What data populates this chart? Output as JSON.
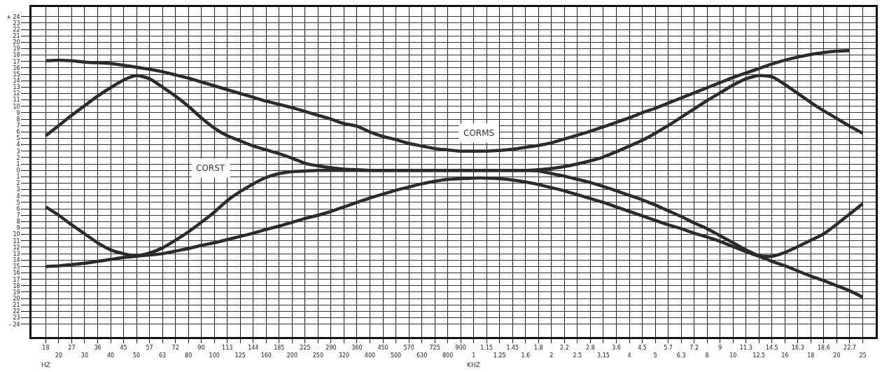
{
  "chart_data": {
    "type": "line",
    "categories": [
      "18",
      "20",
      "27",
      "30",
      "36",
      "40",
      "45",
      "50",
      "57",
      "63",
      "72",
      "80",
      "90",
      "100",
      "113",
      "125",
      "144",
      "160",
      "185",
      "200",
      "225",
      "250",
      "290",
      "320",
      "360",
      "400",
      "450",
      "500",
      "570",
      "630",
      "725",
      "800",
      "900",
      "1",
      "1.15",
      "1.25",
      "1.45",
      "1.6",
      "1.8",
      "2",
      "2.2",
      "2.5",
      "2.8",
      "3.15",
      "3.6",
      "4",
      "4.5",
      "5",
      "5.7",
      "6.3",
      "7.2",
      "8",
      "9",
      "10",
      "11.3",
      "12.5",
      "14.5",
      "16",
      "16.3",
      "18",
      "18.6",
      "20",
      "22.7",
      "25"
    ],
    "series": [
      {
        "color": "#2b2b2b",
        "values": [
          17.1,
          17.2,
          17.1,
          16.9,
          16.8,
          16.7,
          16.4,
          16.1,
          15.8,
          15.4,
          14.9,
          14.4,
          13.8,
          13.2,
          12.6,
          12.0,
          11.4,
          10.8,
          10.3,
          9.8,
          9.2,
          8.6,
          8.0,
          7.3,
          6.9,
          6.0,
          5.3,
          4.8,
          4.2,
          3.8,
          3.4,
          3.2,
          3.0,
          3.0,
          3.0,
          3.1,
          3.3,
          3.6,
          3.9,
          4.3,
          4.9,
          5.5,
          6.1,
          6.8,
          7.5,
          8.2,
          9.0,
          9.7,
          10.5,
          11.3,
          12.1,
          12.9,
          13.7,
          14.5,
          15.2,
          15.9,
          16.6,
          17.2,
          17.7,
          18.1,
          18.4,
          18.6,
          18.7,
          null
        ]
      },
      {
        "color": "#2b2b2b",
        "values": [
          -15.0,
          -14.9,
          -14.7,
          -14.5,
          -14.2,
          -13.9,
          -13.6,
          -13.4,
          -13.2,
          -13.0,
          -12.6,
          -12.2,
          -11.7,
          -11.3,
          -10.8,
          -10.3,
          -9.8,
          -9.2,
          -8.7,
          -8.1,
          -7.5,
          -7.0,
          -6.4,
          -5.7,
          -5.0,
          -4.3,
          -3.7,
          -3.1,
          -2.6,
          -2.1,
          -1.7,
          -1.4,
          -1.3,
          -1.2,
          -1.2,
          -1.3,
          -1.5,
          -1.8,
          -2.2,
          -2.7,
          -3.2,
          -3.8,
          -4.4,
          -5.0,
          -5.7,
          -6.4,
          -7.1,
          -7.8,
          -8.5,
          -9.1,
          -9.8,
          -10.4,
          -11.1,
          -11.9,
          -12.7,
          -13.4,
          -14.2,
          -14.9,
          -15.7,
          -16.5,
          -17.2,
          -18.0,
          -18.8,
          -19.8
        ]
      },
      {
        "color": "#2b2b2b",
        "values": [
          5.4,
          7.0,
          8.6,
          10.1,
          11.6,
          12.9,
          14.1,
          14.8,
          14.3,
          13.0,
          11.6,
          10.0,
          8.2,
          6.6,
          5.4,
          4.6,
          3.8,
          3.2,
          2.6,
          1.9,
          1.1,
          0.7,
          0.4,
          0.2,
          0.1,
          0,
          0,
          0,
          0,
          0,
          0,
          0,
          0,
          0,
          0,
          0,
          0,
          0,
          0.1,
          0.3,
          0.6,
          1.0,
          1.5,
          2.1,
          2.9,
          3.8,
          4.7,
          5.8,
          7.0,
          8.3,
          9.6,
          10.9,
          12.1,
          13.3,
          14.3,
          14.8,
          14.6,
          13.4,
          12.0,
          10.6,
          9.3,
          8.1,
          6.9,
          5.8
        ]
      },
      {
        "color": "#2b2b2b",
        "values": [
          -5.7,
          -7.0,
          -8.5,
          -9.9,
          -11.3,
          -12.4,
          -13.0,
          -13.3,
          -12.9,
          -12.1,
          -10.9,
          -9.6,
          -8.1,
          -6.5,
          -4.7,
          -3.3,
          -2.1,
          -1.1,
          -0.5,
          -0.2,
          -0.1,
          0,
          0,
          0,
          0,
          0,
          0,
          0,
          0,
          0,
          0,
          0,
          0,
          0,
          0,
          0,
          0,
          0,
          -0.1,
          -0.5,
          -0.9,
          -1.4,
          -1.9,
          -2.5,
          -3.2,
          -3.9,
          -4.6,
          -5.4,
          -6.3,
          -7.2,
          -8.2,
          -9.1,
          -10.2,
          -11.3,
          -12.4,
          -13.3,
          -13.4,
          -12.8,
          -11.9,
          -10.9,
          -9.9,
          -8.4,
          -6.8,
          -5.2
        ]
      }
    ],
    "ylim": [
      -26,
      25.5
    ],
    "yticks": [
      {
        "value": 24,
        "label": "+ 24"
      },
      23,
      22,
      21,
      20,
      19,
      18,
      17,
      16,
      15,
      14,
      13,
      12,
      11,
      10,
      9,
      8,
      7,
      6,
      5,
      4,
      3,
      2,
      1,
      0,
      {
        "value": -1,
        "label": "1"
      },
      {
        "value": -2,
        "label": "2"
      },
      {
        "value": -3,
        "label": "3"
      },
      {
        "value": -4,
        "label": "4"
      },
      {
        "value": -5,
        "label": "5"
      },
      {
        "value": -6,
        "label": "6"
      },
      {
        "value": -7,
        "label": "7"
      },
      {
        "value": -8,
        "label": "8"
      },
      {
        "value": -9,
        "label": "9"
      },
      {
        "value": -10,
        "label": "10"
      },
      {
        "value": -11,
        "label": "11"
      },
      {
        "value": -12,
        "label": "12"
      },
      {
        "value": -13,
        "label": "13"
      },
      {
        "value": -14,
        "label": "14"
      },
      {
        "value": -15,
        "label": "15"
      },
      {
        "value": -16,
        "label": "16"
      },
      {
        "value": -17,
        "label": "17"
      },
      {
        "value": -18,
        "label": "18"
      },
      {
        "value": -19,
        "label": "19"
      },
      {
        "value": -20,
        "label": "20"
      },
      {
        "value": -21,
        "label": "21"
      },
      {
        "value": -22,
        "label": "22"
      },
      {
        "value": -23,
        "label": "23"
      },
      {
        "value": -24,
        "label": "- 24"
      }
    ],
    "annotations": [
      "CORST",
      "CORMS",
      "HZ",
      "KHZ"
    ],
    "grid": true,
    "marker": "none",
    "line_style": "solid"
  }
}
